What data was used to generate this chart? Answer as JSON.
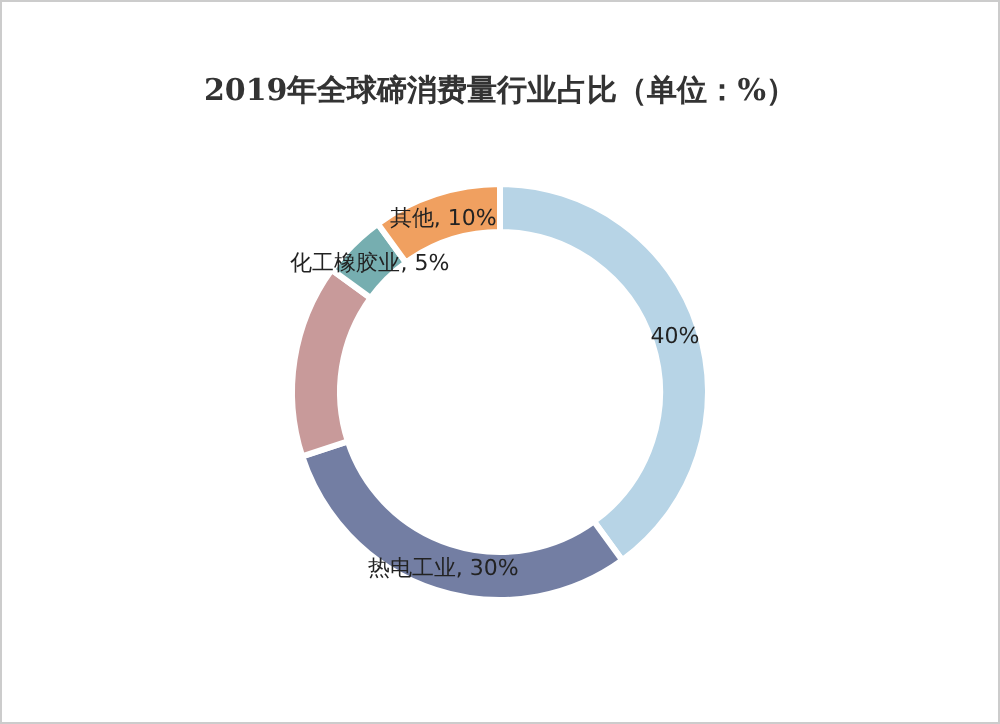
{
  "chart_data": {
    "type": "donut",
    "title": "2019年全球碲消费量行业占比（单位：%）",
    "categories": [
      null,
      "热电工业",
      null,
      "化工橡胶业",
      "其他"
    ],
    "values": [
      40,
      30,
      15,
      5,
      10
    ],
    "value_labels": [
      "40%",
      "30%",
      null,
      "5%",
      "10%"
    ],
    "colors": [
      "#b7d4e6",
      "#737ea3",
      "#c89a9a",
      "#76aeb0",
      "#f0a060"
    ]
  }
}
